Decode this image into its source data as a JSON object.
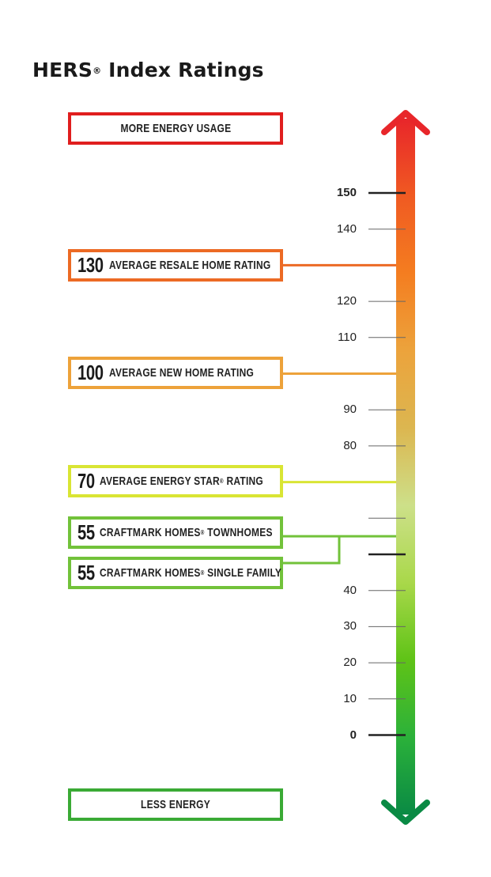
{
  "title": "HERS",
  "title_sup": "®",
  "title_rest": " Index Ratings",
  "top_box": {
    "label": "MORE ENERGY USAGE",
    "color": "#e01e1e"
  },
  "bottom_box": {
    "label": "LESS ENERGY",
    "color": "#3aaa35"
  },
  "ratings": [
    {
      "value": "130",
      "label": "AVERAGE RESALE HOME RATING",
      "color": "#ec6a24"
    },
    {
      "value": "100",
      "label": "AVERAGE NEW HOME RATING",
      "color": "#eda23a"
    },
    {
      "value": "70",
      "label": "AVERAGE ENERGY STAR",
      "label_sup": "®",
      "label_rest": " RATING",
      "color": "#d9e534"
    },
    {
      "value": "55",
      "label": "CRAFTMARK HOMES",
      "label_sup": "®",
      "label_rest": " TOWNHOMES",
      "color": "#72c23a"
    },
    {
      "value": "55",
      "label": "CRAFTMARK HOMES",
      "label_sup": "®",
      "label_rest": " SINGLE FAMILY",
      "color": "#72c23a"
    }
  ],
  "scale": {
    "ticks": [
      {
        "value": 150,
        "label": "150",
        "major": true
      },
      {
        "value": 140,
        "label": "140",
        "major": false
      },
      {
        "value": 120,
        "label": "120",
        "major": false
      },
      {
        "value": 110,
        "label": "110",
        "major": false
      },
      {
        "value": 90,
        "label": "90",
        "major": false
      },
      {
        "value": 80,
        "label": "80",
        "major": false
      },
      {
        "value": 40,
        "label": "40",
        "major": false
      },
      {
        "value": 30,
        "label": "30",
        "major": false
      },
      {
        "value": 20,
        "label": "20",
        "major": false
      },
      {
        "value": 10,
        "label": "10",
        "major": false
      },
      {
        "value": 0,
        "label": "0",
        "major": true
      }
    ],
    "unlabeled_ticks": [
      {
        "value": 130
      },
      {
        "value": 100
      },
      {
        "value": 70
      },
      {
        "value": 60
      },
      {
        "value": 50,
        "major": true
      }
    ],
    "gradient_colors": [
      "#e8262a",
      "#f05a22",
      "#f47d20",
      "#eca33c",
      "#dcb650",
      "#cde089",
      "#a9d84a",
      "#5fc317",
      "#2bb13a",
      "#0a8a44"
    ]
  }
}
